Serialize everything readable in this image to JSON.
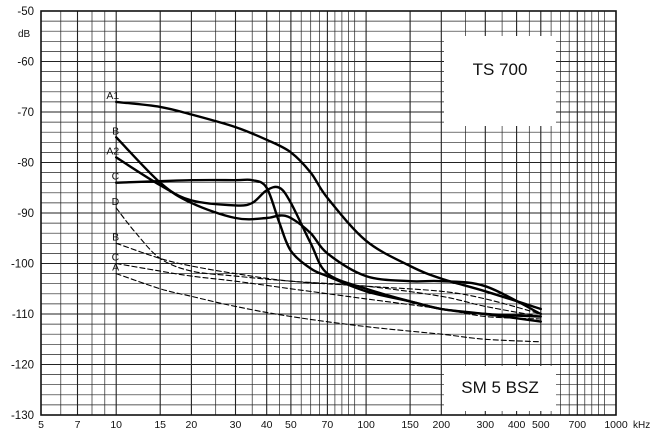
{
  "chart_data": {
    "type": "line",
    "title": "",
    "xlabel": "",
    "ylabel": "",
    "x_unit": "kHz",
    "y_unit": "dB",
    "x_scale": "log",
    "xlim": [
      5,
      1000
    ],
    "ylim": [
      -130,
      -50
    ],
    "grid": true,
    "x_ticks": [
      5,
      7,
      10,
      15,
      20,
      30,
      40,
      50,
      70,
      100,
      150,
      200,
      300,
      400,
      500,
      700,
      1000
    ],
    "x_tick_labels": [
      "5",
      "7",
      "10",
      "15",
      "20",
      "30",
      "40",
      "50",
      "70",
      "100",
      "150",
      "200",
      "300",
      "400",
      "500",
      "700",
      "1000"
    ],
    "y_ticks": [
      -50,
      -60,
      -70,
      -80,
      -90,
      -100,
      -110,
      -120,
      -130
    ],
    "y_tick_labels": [
      "-50",
      "-60",
      "-70",
      "-80",
      "-90",
      "-100",
      "-110",
      "-120",
      "-130"
    ],
    "annotations": [
      "TS 700",
      "SM 5 BSZ"
    ],
    "series": [
      {
        "name": "A1",
        "style": "solid",
        "panel": "TS 700",
        "x": [
          10,
          15,
          20,
          30,
          40,
          50,
          60,
          70,
          100,
          150,
          200,
          300,
          500
        ],
        "y": [
          -68,
          -69,
          -70.5,
          -73,
          -75.5,
          -78,
          -82,
          -87,
          -95.5,
          -100.5,
          -103,
          -105.5,
          -109
        ]
      },
      {
        "name": "A2",
        "style": "solid",
        "panel": "TS 700",
        "x": [
          10,
          15,
          20,
          30,
          35,
          40,
          45,
          50,
          60,
          70,
          100,
          150,
          200,
          300,
          500
        ],
        "y": [
          -79,
          -84.5,
          -87.5,
          -88.5,
          -88,
          -85.5,
          -85,
          -88,
          -96,
          -102,
          -105,
          -107.5,
          -109,
          -110,
          -111.5
        ]
      },
      {
        "name": "B",
        "style": "solid",
        "panel": "TS 700",
        "x": [
          10,
          15,
          20,
          30,
          40,
          45,
          50,
          60,
          70,
          100,
          150,
          200,
          300,
          500
        ],
        "y": [
          -75,
          -84,
          -88,
          -91,
          -91,
          -90.5,
          -91,
          -94,
          -98,
          -102.5,
          -103.5,
          -103.5,
          -104.5,
          -110
        ]
      },
      {
        "name": "C",
        "style": "solid",
        "panel": "TS 700",
        "x": [
          10,
          20,
          30,
          35,
          40,
          45,
          50,
          60,
          70,
          100,
          150,
          200,
          300,
          500
        ],
        "y": [
          -84,
          -83.5,
          -83.5,
          -83.5,
          -85,
          -92,
          -97.5,
          -101,
          -102.5,
          -105.5,
          -107.5,
          -109,
          -110,
          -110.5
        ]
      },
      {
        "name": "D",
        "style": "dashed",
        "panel": "SM 5 BSZ",
        "x": [
          10,
          12,
          15,
          20,
          30,
          50,
          100,
          200,
          300,
          500
        ],
        "y": [
          -89,
          -94,
          -99,
          -101.5,
          -102.5,
          -103.5,
          -104.5,
          -106.5,
          -108.5,
          -110.5
        ]
      },
      {
        "name": "B",
        "style": "dashed",
        "panel": "SM 5 BSZ",
        "x": [
          10,
          15,
          20,
          30,
          50,
          100,
          200,
          300,
          500
        ],
        "y": [
          -96,
          -99,
          -100.5,
          -102,
          -103.5,
          -104.5,
          -105.5,
          -107,
          -110
        ]
      },
      {
        "name": "C",
        "style": "dashed",
        "panel": "SM 5 BSZ",
        "x": [
          10,
          15,
          20,
          30,
          50,
          100,
          200,
          300,
          500
        ],
        "y": [
          -100,
          -101.5,
          -102.5,
          -103.5,
          -105,
          -107,
          -109,
          -110.5,
          -111
        ]
      },
      {
        "name": "A",
        "style": "dashed",
        "panel": "SM 5 BSZ",
        "x": [
          10,
          15,
          20,
          30,
          50,
          100,
          200,
          300,
          500
        ],
        "y": [
          -102,
          -105,
          -106.5,
          -108.5,
          -110.5,
          -112.5,
          -114,
          -115,
          -115.5
        ]
      }
    ]
  }
}
